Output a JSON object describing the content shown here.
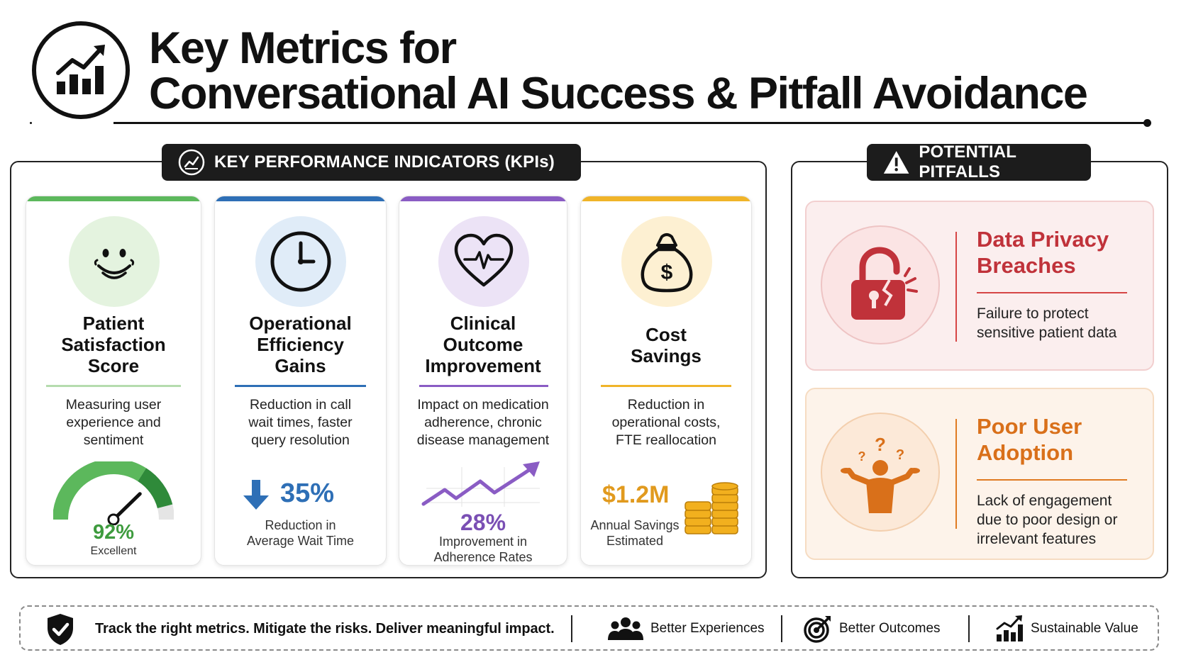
{
  "header": {
    "icon": "growth-chart-icon",
    "title_line1": "Key Metrics for",
    "title_line2": "Conversational AI Success & Pitfall Avoidance"
  },
  "kpi_section": {
    "tab_icon": "line-chart-icon",
    "tab_label": "KEY PERFORMANCE INDICATORS (KPIs)",
    "cards": [
      {
        "icon": "smiley-face-icon",
        "accent": "#5cb85c",
        "title_lines": [
          "Patient",
          "Satisfaction",
          "Score"
        ],
        "description_lines": [
          "Measuring user",
          "experience and",
          "sentiment"
        ],
        "stat_value": "92%",
        "stat_label": "Excellent",
        "gauge_fraction": 0.92
      },
      {
        "icon": "clock-icon",
        "accent": "#2e6fb6",
        "title_lines": [
          "Operational",
          "Efficiency",
          "Gains"
        ],
        "description_lines": [
          "Reduction in call",
          "wait times, faster",
          "query resolution"
        ],
        "stat_value": "35%",
        "stat_label_lines": [
          "Reduction in",
          "Average Wait Time"
        ]
      },
      {
        "icon": "heartbeat-icon",
        "accent": "#8a5cc4",
        "title_lines": [
          "Clinical",
          "Outcome",
          "Improvement"
        ],
        "description_lines": [
          "Impact on medication",
          "adherence, chronic",
          "disease management"
        ],
        "stat_value": "28%",
        "stat_label_lines": [
          "Improvement in",
          "Adherence Rates"
        ]
      },
      {
        "icon": "money-bag-icon",
        "accent": "#f0b429",
        "title_lines": [
          "Cost",
          "Savings"
        ],
        "description_lines": [
          "Reduction in",
          "operational costs,",
          "FTE reallocation"
        ],
        "stat_value": "$1.2M",
        "stat_label_lines": [
          "Annual Savings",
          "Estimated"
        ]
      }
    ]
  },
  "pitfalls_section": {
    "tab_icon": "warning-icon",
    "tab_label": "POTENTIAL PITFALLS",
    "items": [
      {
        "icon": "broken-padlock-icon",
        "title_lines": [
          "Data Privacy",
          "Breaches"
        ],
        "description_lines": [
          "Failure to protect",
          "sensitive patient data"
        ]
      },
      {
        "icon": "confused-person-icon",
        "title_lines": [
          "Poor User",
          "Adoption"
        ],
        "description_lines": [
          "Lack of engagement",
          "due to poor design or",
          "irrelevant features"
        ]
      }
    ]
  },
  "footer": {
    "shield_icon": "shield-check-icon",
    "tagline": "Track the right metrics.  Mitigate the risks. Deliver meaningful impact.",
    "items": [
      {
        "icon": "people-group-icon",
        "label": "Better Experiences"
      },
      {
        "icon": "target-icon",
        "label": "Better Outcomes"
      },
      {
        "icon": "growth-chart-icon",
        "label": "Sustainable Value"
      }
    ]
  }
}
